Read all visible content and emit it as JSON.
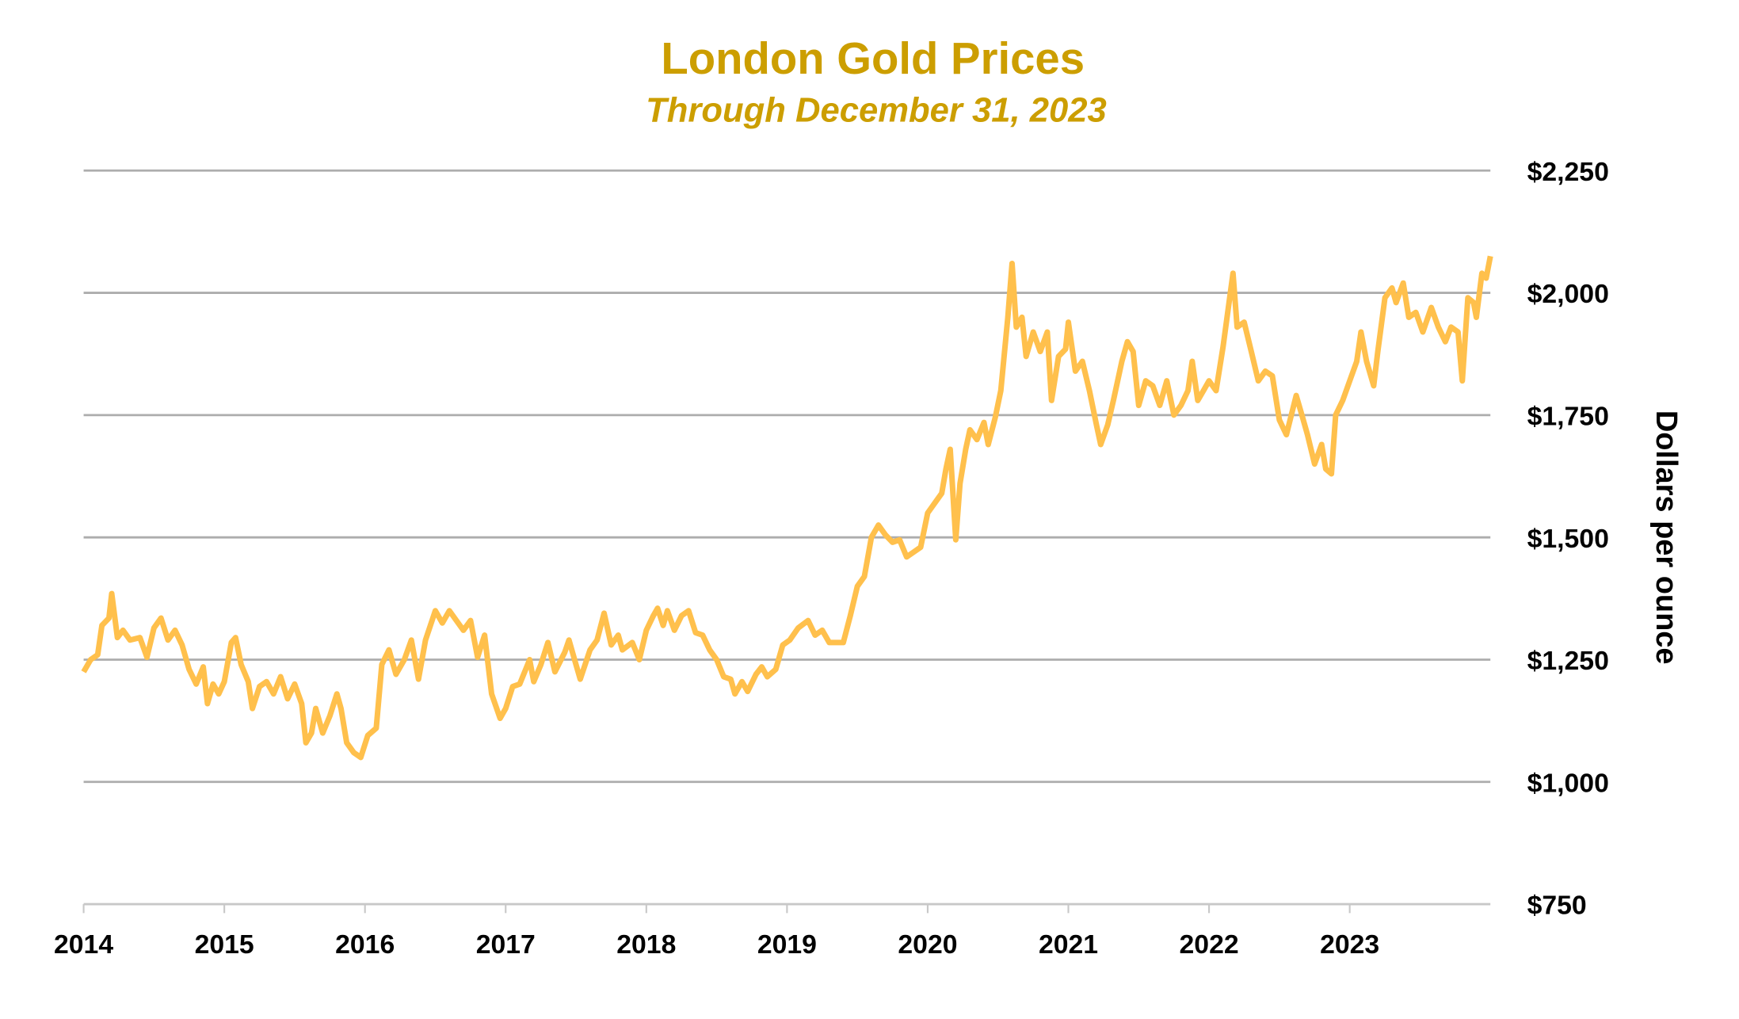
{
  "chart_data": {
    "type": "line",
    "title": "London Gold Prices",
    "subtitle": "Through December 31, 2023",
    "xlabel": "",
    "ylabel": "Dollars per ounce",
    "xlim": [
      2014,
      2024
    ],
    "ylim": [
      750,
      2250
    ],
    "x_ticks": [
      "2014",
      "2015",
      "2016",
      "2017",
      "2018",
      "2019",
      "2020",
      "2021",
      "2022",
      "2023"
    ],
    "y_ticks": [
      "$750",
      "$1,000",
      "$1,250",
      "$1,500",
      "$1,750",
      "$2,000",
      "$2,250"
    ],
    "y_tick_values": [
      750,
      1000,
      1250,
      1500,
      1750,
      2000,
      2250
    ],
    "y_axis_side": "right",
    "grid": "horizontal",
    "legend": "none",
    "colors": {
      "line": "#FFC04C",
      "title": "#CC9E00",
      "grid": "#ADADAD"
    },
    "series": [
      {
        "x": [
          2014.0,
          2014.05,
          2014.1,
          2014.13,
          2014.18,
          2014.2,
          2014.24,
          2014.28,
          2014.33,
          2014.4,
          2014.45,
          2014.5,
          2014.55,
          2014.6,
          2014.65,
          2014.7,
          2014.75,
          2014.8,
          2014.85,
          2014.88,
          2014.92,
          2014.96,
          2015.0,
          2015.05,
          2015.08,
          2015.12,
          2015.17,
          2015.2,
          2015.25,
          2015.3,
          2015.35,
          2015.4,
          2015.45,
          2015.5,
          2015.55,
          2015.58,
          2015.62,
          2015.65,
          2015.7,
          2015.75,
          2015.8,
          2015.83,
          2015.87,
          2015.92,
          2015.97,
          2016.02,
          2016.08,
          2016.12,
          2016.17,
          2016.22,
          2016.28,
          2016.33,
          2016.38,
          2016.43,
          2016.5,
          2016.55,
          2016.6,
          2016.65,
          2016.7,
          2016.75,
          2016.8,
          2016.85,
          2016.9,
          2016.96,
          2017.0,
          2017.05,
          2017.1,
          2017.17,
          2017.2,
          2017.25,
          2017.3,
          2017.35,
          2017.42,
          2017.45,
          2017.5,
          2017.53,
          2017.6,
          2017.65,
          2017.7,
          2017.75,
          2017.8,
          2017.83,
          2017.9,
          2017.95,
          2018.0,
          2018.05,
          2018.08,
          2018.12,
          2018.15,
          2018.2,
          2018.25,
          2018.3,
          2018.35,
          2018.4,
          2018.45,
          2018.5,
          2018.55,
          2018.6,
          2018.63,
          2018.68,
          2018.72,
          2018.78,
          2018.82,
          2018.86,
          2018.92,
          2018.97,
          2019.02,
          2019.08,
          2019.15,
          2019.2,
          2019.25,
          2019.3,
          2019.35,
          2019.4,
          2019.45,
          2019.5,
          2019.55,
          2019.6,
          2019.65,
          2019.7,
          2019.75,
          2019.8,
          2019.85,
          2019.9,
          2019.95,
          2020.0,
          2020.05,
          2020.1,
          2020.13,
          2020.16,
          2020.2,
          2020.23,
          2020.27,
          2020.3,
          2020.35,
          2020.4,
          2020.43,
          2020.48,
          2020.52,
          2020.57,
          2020.6,
          2020.63,
          2020.67,
          2020.7,
          2020.75,
          2020.8,
          2020.85,
          2020.88,
          2020.93,
          2020.98,
          2021.0,
          2021.05,
          2021.1,
          2021.15,
          2021.2,
          2021.23,
          2021.28,
          2021.32,
          2021.38,
          2021.42,
          2021.46,
          2021.5,
          2021.55,
          2021.6,
          2021.65,
          2021.7,
          2021.75,
          2021.8,
          2021.85,
          2021.88,
          2021.92,
          2021.96,
          2022.0,
          2022.05,
          2022.1,
          2022.17,
          2022.2,
          2022.25,
          2022.3,
          2022.35,
          2022.4,
          2022.45,
          2022.5,
          2022.55,
          2022.62,
          2022.66,
          2022.7,
          2022.75,
          2022.8,
          2022.83,
          2022.87,
          2022.9,
          2022.95,
          2023.0,
          2023.05,
          2023.08,
          2023.12,
          2023.17,
          2023.2,
          2023.25,
          2023.3,
          2023.33,
          2023.38,
          2023.42,
          2023.47,
          2023.52,
          2023.58,
          2023.63,
          2023.68,
          2023.72,
          2023.77,
          2023.8,
          2023.84,
          2023.88,
          2023.9,
          2023.94,
          2023.97,
          2024.0
        ],
        "y": [
          1225,
          1250,
          1260,
          1320,
          1335,
          1385,
          1295,
          1310,
          1290,
          1295,
          1255,
          1315,
          1335,
          1290,
          1310,
          1280,
          1230,
          1200,
          1235,
          1160,
          1200,
          1180,
          1205,
          1285,
          1295,
          1240,
          1205,
          1150,
          1195,
          1205,
          1180,
          1215,
          1170,
          1200,
          1160,
          1080,
          1100,
          1150,
          1100,
          1135,
          1180,
          1150,
          1080,
          1060,
          1050,
          1095,
          1110,
          1240,
          1270,
          1220,
          1250,
          1290,
          1210,
          1290,
          1350,
          1325,
          1350,
          1330,
          1310,
          1330,
          1255,
          1300,
          1180,
          1130,
          1150,
          1195,
          1200,
          1250,
          1205,
          1240,
          1285,
          1225,
          1265,
          1290,
          1240,
          1210,
          1270,
          1290,
          1345,
          1280,
          1300,
          1270,
          1285,
          1250,
          1310,
          1340,
          1355,
          1320,
          1350,
          1310,
          1340,
          1350,
          1305,
          1300,
          1270,
          1250,
          1215,
          1210,
          1180,
          1205,
          1185,
          1220,
          1235,
          1215,
          1230,
          1280,
          1290,
          1315,
          1330,
          1300,
          1310,
          1285,
          1285,
          1285,
          1340,
          1400,
          1420,
          1500,
          1525,
          1505,
          1490,
          1495,
          1460,
          1470,
          1480,
          1550,
          1570,
          1590,
          1640,
          1680,
          1495,
          1610,
          1680,
          1720,
          1700,
          1735,
          1690,
          1745,
          1800,
          1950,
          2060,
          1930,
          1950,
          1870,
          1920,
          1880,
          1920,
          1780,
          1870,
          1885,
          1940,
          1840,
          1860,
          1800,
          1730,
          1690,
          1730,
          1780,
          1860,
          1900,
          1880,
          1770,
          1820,
          1810,
          1770,
          1820,
          1750,
          1770,
          1800,
          1860,
          1780,
          1800,
          1820,
          1800,
          1890,
          2040,
          1930,
          1940,
          1880,
          1820,
          1840,
          1830,
          1740,
          1710,
          1790,
          1750,
          1710,
          1650,
          1690,
          1640,
          1630,
          1750,
          1780,
          1820,
          1860,
          1920,
          1860,
          1810,
          1880,
          1990,
          2010,
          1980,
          2020,
          1950,
          1960,
          1920,
          1970,
          1930,
          1900,
          1930,
          1920,
          1820,
          1990,
          1980,
          1950,
          2040,
          2030,
          2075
        ]
      }
    ]
  }
}
